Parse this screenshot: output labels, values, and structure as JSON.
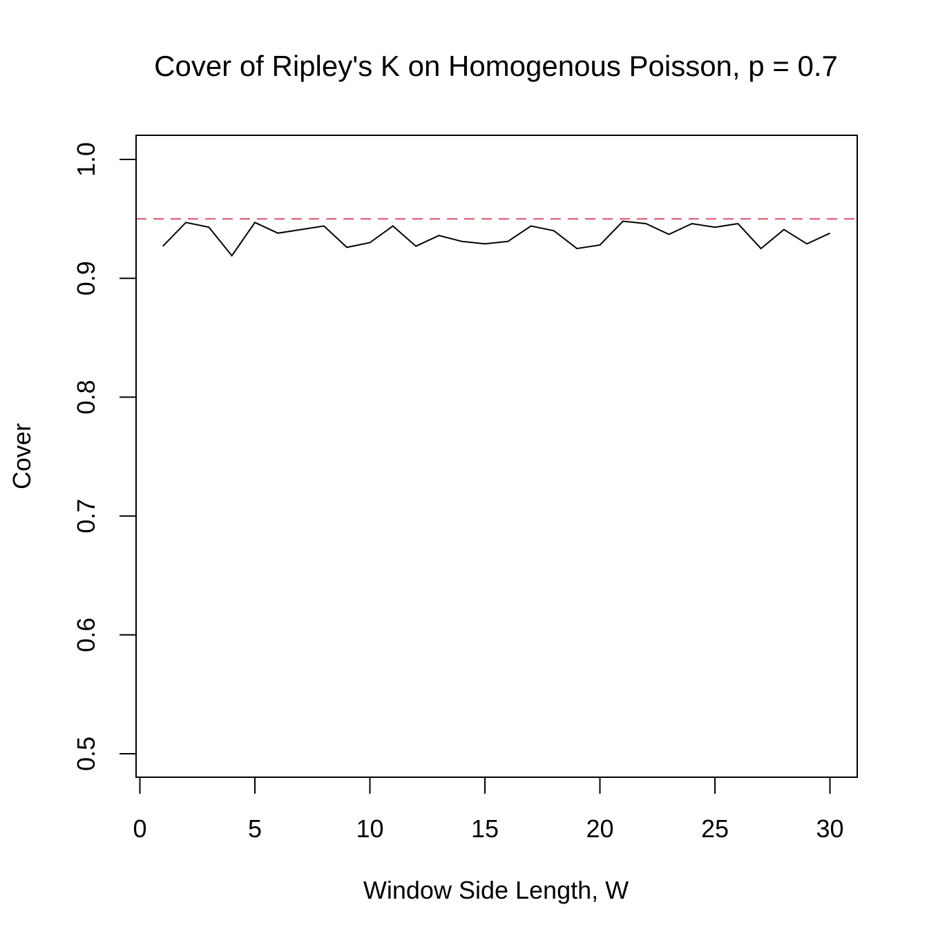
{
  "chart_data": {
    "type": "line",
    "title": "Cover of Ripley's K on Homogenous Poisson, p = 0.7",
    "xlabel": "Window Side Length, W",
    "ylabel": "Cover",
    "xlim": [
      0,
      30
    ],
    "ylim": [
      0.5,
      1.0
    ],
    "xticks": [
      0,
      5,
      10,
      15,
      20,
      25,
      30
    ],
    "xtick_labels": [
      "0",
      "5",
      "10",
      "15",
      "20",
      "25",
      "30"
    ],
    "yticks": [
      0.5,
      0.6,
      0.7,
      0.8,
      0.9,
      1.0
    ],
    "ytick_labels": [
      "0.5",
      "0.6",
      "0.7",
      "0.8",
      "0.9",
      "1.0"
    ],
    "grid": false,
    "series": [
      {
        "color": "#000000",
        "style": "solid",
        "x": [
          1,
          2,
          3,
          4,
          5,
          6,
          7,
          8,
          9,
          10,
          11,
          12,
          13,
          14,
          15,
          16,
          17,
          18,
          19,
          20,
          21,
          22,
          23,
          24,
          25,
          26,
          27,
          28,
          29,
          30
        ],
        "y": [
          0.927,
          0.947,
          0.943,
          0.919,
          0.947,
          0.938,
          0.941,
          0.944,
          0.926,
          0.93,
          0.944,
          0.927,
          0.936,
          0.931,
          0.929,
          0.931,
          0.944,
          0.94,
          0.925,
          0.928,
          0.948,
          0.946,
          0.937,
          0.946,
          0.943,
          0.946,
          0.925,
          0.941,
          0.929,
          0.938
        ]
      }
    ],
    "reference_lines": [
      {
        "orientation": "horizontal",
        "value": 0.95,
        "color": "#DF536B",
        "style": "dashed"
      }
    ]
  }
}
